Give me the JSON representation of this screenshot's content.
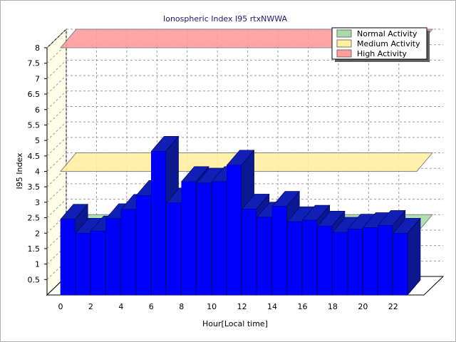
{
  "chart_data": {
    "type": "bar",
    "title": "Ionospheric Index I95 rtxNWWA",
    "xlabel": "Hour[Local time]",
    "ylabel": "I95 Index",
    "ylim": [
      0,
      8
    ],
    "yticks": [
      "0.5",
      "1",
      "1.5",
      "2",
      "2.5",
      "3",
      "3.5",
      "4",
      "4.5",
      "5",
      "5.5",
      "6",
      "6.5",
      "7",
      "7.5",
      "8"
    ],
    "xticks": [
      "0",
      "2",
      "4",
      "6",
      "8",
      "10",
      "12",
      "14",
      "16",
      "18",
      "20",
      "22"
    ],
    "hours": [
      0,
      1,
      2,
      3,
      4,
      5,
      6,
      7,
      8,
      9,
      10,
      11,
      12,
      13,
      14,
      15,
      16,
      17,
      18,
      19,
      20,
      21,
      22
    ],
    "values": [
      2.45,
      2.0,
      2.07,
      2.47,
      2.77,
      3.22,
      4.65,
      2.98,
      3.67,
      3.62,
      3.67,
      4.2,
      2.78,
      2.52,
      2.87,
      2.37,
      2.42,
      2.23,
      2.03,
      2.13,
      2.18,
      2.25,
      2.0
    ],
    "bar_color": "#0000ff",
    "grid": true,
    "legend_position": "top-right",
    "bands": [
      {
        "name": "Normal Activity",
        "value": 2.0,
        "color": "#a8dca8"
      },
      {
        "name": "Medium Activity",
        "value": 4.0,
        "color": "#fff0a0"
      },
      {
        "name": "High Activity",
        "value": 8.0,
        "color": "#ff9c9c"
      }
    ]
  }
}
